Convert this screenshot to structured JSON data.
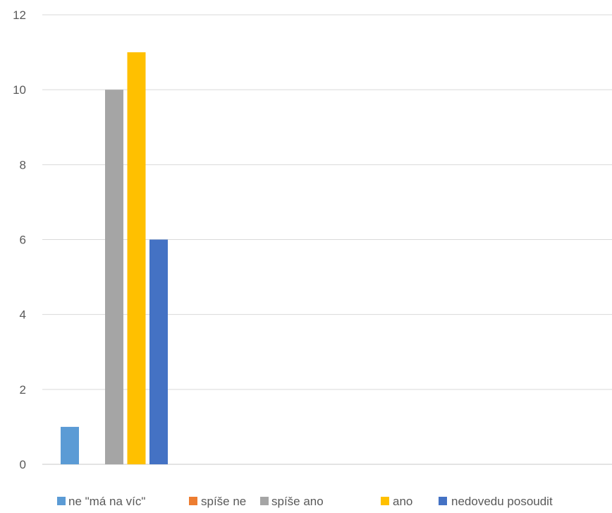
{
  "chart_data": {
    "type": "bar",
    "title": "",
    "xlabel": "",
    "ylabel": "",
    "ylim": [
      0,
      12
    ],
    "yticks": [
      0,
      2,
      4,
      6,
      8,
      10,
      12
    ],
    "grid": true,
    "legend_position": "bottom",
    "categories": [
      ""
    ],
    "series": [
      {
        "name": "ne \"má na víc\"",
        "values": [
          1
        ],
        "color": "#5B9BD5"
      },
      {
        "name": "spíše ne",
        "values": [
          0
        ],
        "color": "#ED7D31"
      },
      {
        "name": "spíše ano",
        "values": [
          10
        ],
        "color": "#A5A5A5"
      },
      {
        "name": "ano",
        "values": [
          11
        ],
        "color": "#FFC000"
      },
      {
        "name": "nedovedu posoudit",
        "values": [
          6
        ],
        "color": "#4472C4"
      }
    ]
  }
}
